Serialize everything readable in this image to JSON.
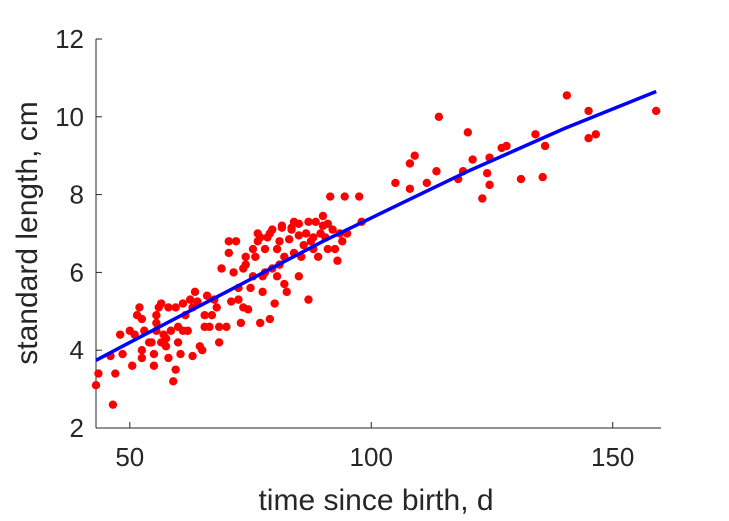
{
  "chart_data": {
    "type": "scatter",
    "title": "",
    "xlabel": "time since birth, d",
    "ylabel": "standard length, cm",
    "xlim": [
      43,
      160
    ],
    "ylim": [
      2,
      12
    ],
    "xticks": [
      50,
      100,
      150
    ],
    "yticks": [
      2,
      4,
      6,
      8,
      10,
      12
    ],
    "grid": false,
    "legend": "none",
    "colors": {
      "points": "#ff0000",
      "fit_line": "#0000ff",
      "axis": "#262626"
    },
    "series": [
      {
        "type": "scatter",
        "points": [
          [
            43,
            3.1
          ],
          [
            43.5,
            3.4
          ],
          [
            46,
            3.85
          ],
          [
            46.5,
            2.6
          ],
          [
            47,
            3.4
          ],
          [
            48,
            4.4
          ],
          [
            48.5,
            3.9
          ],
          [
            50,
            4.5
          ],
          [
            50.5,
            3.6
          ],
          [
            51,
            4.4
          ],
          [
            51.5,
            4.9
          ],
          [
            52,
            5.1
          ],
          [
            52.5,
            4.8
          ],
          [
            52.5,
            4.0
          ],
          [
            52.5,
            3.8
          ],
          [
            53,
            4.5
          ],
          [
            54,
            4.2
          ],
          [
            54.5,
            4.2
          ],
          [
            55,
            3.6
          ],
          [
            55,
            3.9
          ],
          [
            55.5,
            4.5
          ],
          [
            55.5,
            4.7
          ],
          [
            55.5,
            4.9
          ],
          [
            56,
            5.1
          ],
          [
            56.5,
            5.2
          ],
          [
            56.5,
            4.2
          ],
          [
            57,
            4.4
          ],
          [
            57.5,
            4.3
          ],
          [
            57.5,
            4.1
          ],
          [
            58,
            5.1
          ],
          [
            58,
            3.8
          ],
          [
            58.5,
            4.5
          ],
          [
            59,
            3.2
          ],
          [
            59.5,
            3.5
          ],
          [
            59.5,
            5.1
          ],
          [
            60,
            4.2
          ],
          [
            60,
            4.6
          ],
          [
            60.5,
            3.9
          ],
          [
            61,
            4.5
          ],
          [
            61,
            5.2
          ],
          [
            61.5,
            4.9
          ],
          [
            62,
            4.5
          ],
          [
            62.5,
            5.3
          ],
          [
            63,
            3.85
          ],
          [
            63,
            5.1
          ],
          [
            63.5,
            5.5
          ],
          [
            64,
            5.25
          ],
          [
            64.5,
            4.1
          ],
          [
            65,
            4.0
          ],
          [
            65.5,
            4.6
          ],
          [
            65.5,
            4.9
          ],
          [
            66,
            5.4
          ],
          [
            66.5,
            4.6
          ],
          [
            67,
            4.9
          ],
          [
            67.5,
            5.3
          ],
          [
            68,
            5.1
          ],
          [
            68.5,
            4.2
          ],
          [
            68.5,
            4.6
          ],
          [
            69,
            6.1
          ],
          [
            70,
            4.6
          ],
          [
            70.5,
            6.5
          ],
          [
            70.5,
            6.8
          ],
          [
            71,
            5.25
          ],
          [
            71.5,
            6.0
          ],
          [
            72,
            6.8
          ],
          [
            72.5,
            5.3
          ],
          [
            72.5,
            5.6
          ],
          [
            73,
            4.7
          ],
          [
            73.5,
            5.1
          ],
          [
            73.5,
            6.1
          ],
          [
            74,
            6.2
          ],
          [
            74,
            6.4
          ],
          [
            74.5,
            5.05
          ],
          [
            75,
            5.6
          ],
          [
            75.5,
            5.9
          ],
          [
            75.5,
            6.6
          ],
          [
            76,
            6.4
          ],
          [
            76.5,
            6.8
          ],
          [
            76.5,
            7.0
          ],
          [
            77,
            6.9
          ],
          [
            77,
            4.7
          ],
          [
            77.5,
            5.5
          ],
          [
            77.5,
            5.9
          ],
          [
            78,
            6.0
          ],
          [
            78,
            6.6
          ],
          [
            78.5,
            6.9
          ],
          [
            79,
            7.0
          ],
          [
            79,
            4.8
          ],
          [
            79.5,
            6.1
          ],
          [
            79.5,
            7.1
          ],
          [
            80,
            5.2
          ],
          [
            80.5,
            5.9
          ],
          [
            80.5,
            6.6
          ],
          [
            81,
            6.2
          ],
          [
            81,
            6.8
          ],
          [
            81.5,
            7.2
          ],
          [
            81.5,
            7.15
          ],
          [
            82,
            5.7
          ],
          [
            82,
            6.4
          ],
          [
            82.5,
            5.5
          ],
          [
            83,
            6.85
          ],
          [
            83.5,
            7.1
          ],
          [
            83.5,
            7.15
          ],
          [
            84,
            6.5
          ],
          [
            84,
            7.3
          ],
          [
            85,
            5.9
          ],
          [
            85,
            6.95
          ],
          [
            85,
            7.25
          ],
          [
            85.5,
            6.4
          ],
          [
            86,
            6.7
          ],
          [
            86.5,
            7.0
          ],
          [
            87,
            5.3
          ],
          [
            87,
            7.3
          ],
          [
            87.5,
            6.8
          ],
          [
            88,
            6.6
          ],
          [
            88,
            6.9
          ],
          [
            88.5,
            7.3
          ],
          [
            89,
            6.4
          ],
          [
            89.5,
            7.0
          ],
          [
            90,
            7.2
          ],
          [
            90,
            7.45
          ],
          [
            90.5,
            6.9
          ],
          [
            91,
            7.25
          ],
          [
            91,
            6.6
          ],
          [
            91.5,
            7.95
          ],
          [
            92,
            7.1
          ],
          [
            92.5,
            6.6
          ],
          [
            93,
            6.3
          ],
          [
            93.5,
            7.0
          ],
          [
            94,
            6.8
          ],
          [
            94.5,
            7.95
          ],
          [
            95,
            7.0
          ],
          [
            97.5,
            7.95
          ],
          [
            98,
            7.3
          ],
          [
            105,
            8.3
          ],
          [
            108,
            8.15
          ],
          [
            108,
            8.8
          ],
          [
            109,
            9.0
          ],
          [
            111.5,
            8.3
          ],
          [
            113.5,
            8.6
          ],
          [
            114,
            10.0
          ],
          [
            118,
            8.4
          ],
          [
            119,
            8.6
          ],
          [
            120,
            9.6
          ],
          [
            121,
            8.9
          ],
          [
            123,
            7.9
          ],
          [
            124,
            8.55
          ],
          [
            124.5,
            8.25
          ],
          [
            124.5,
            8.95
          ],
          [
            127,
            9.2
          ],
          [
            128,
            9.25
          ],
          [
            131,
            8.4
          ],
          [
            134,
            9.55
          ],
          [
            135.5,
            8.45
          ],
          [
            136,
            9.25
          ],
          [
            140.5,
            10.55
          ],
          [
            145,
            9.45
          ],
          [
            145,
            10.15
          ],
          [
            146.5,
            9.55
          ],
          [
            159,
            10.15
          ]
        ]
      },
      {
        "type": "line",
        "x": [
          43,
          50,
          60,
          70,
          80,
          90,
          100,
          110,
          120,
          130,
          140,
          150,
          159
        ],
        "y": [
          3.74,
          4.2,
          4.85,
          5.5,
          6.15,
          6.8,
          7.4,
          8.0,
          8.6,
          9.15,
          9.7,
          10.2,
          10.65
        ]
      }
    ]
  }
}
